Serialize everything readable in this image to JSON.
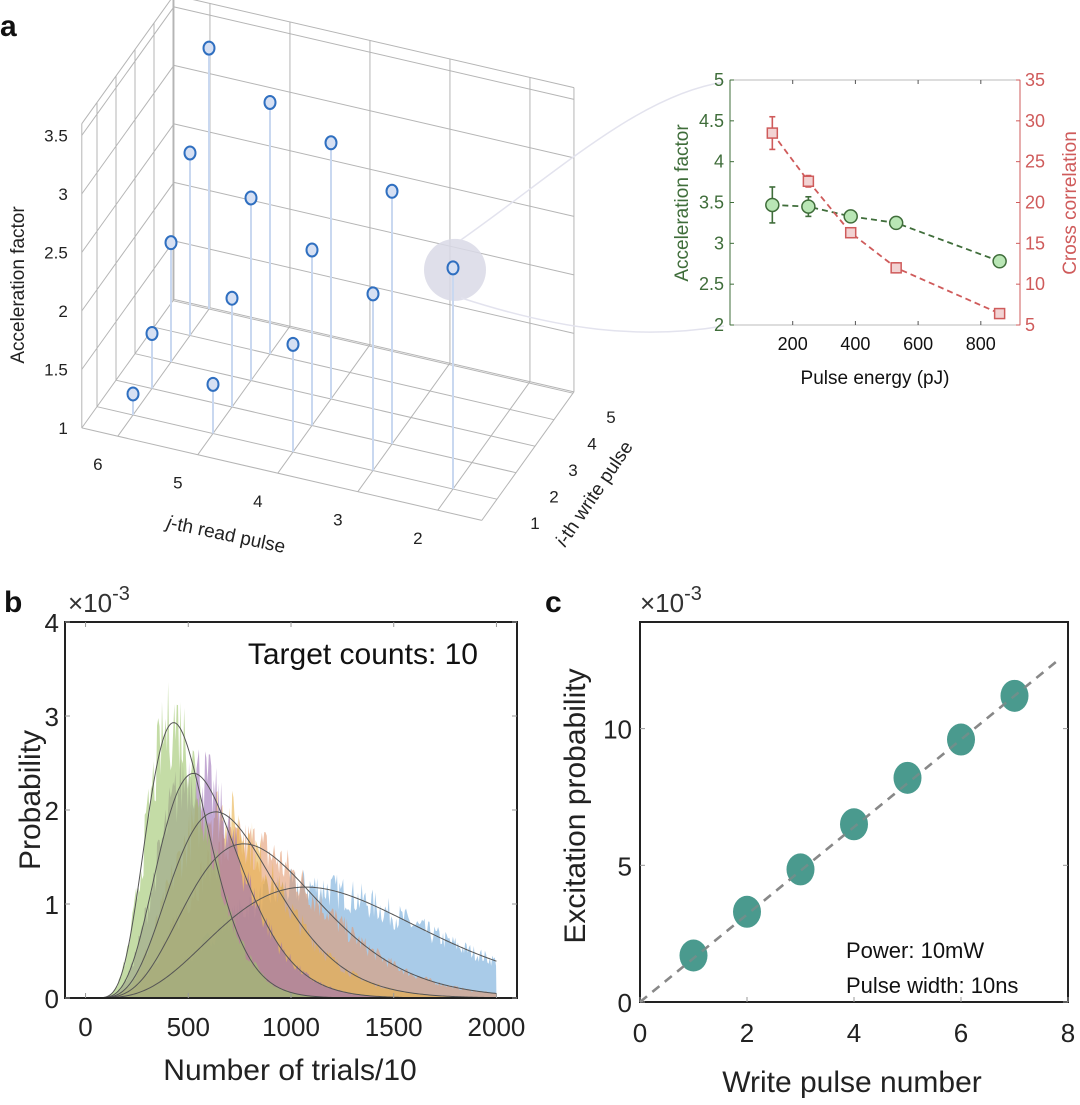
{
  "figure": {
    "panel_labels": {
      "a": "a",
      "b": "b",
      "c": "c"
    },
    "colors": {
      "stem_marker_edge": "#2f6fc0",
      "stem_marker_fill": "#d6e0f3",
      "stem_line": "#c9d8f0",
      "highlight": "#d9d9e6",
      "connector": "#e3e3ee",
      "inset_green": "#3f6d3a",
      "inset_green_fill": "#b9e6b5",
      "inset_red": "#cf5b5b",
      "inset_red_fill": "#f2d3d3",
      "teal": "#4a9a8e",
      "fit_line": "#555555",
      "dash_line": "#888888"
    }
  },
  "chart_data": [
    {
      "id": "a-3d",
      "type": "scatter",
      "subtype": "3d-stem",
      "zlabel": "Acceleration factor",
      "xlabel_italic": "j",
      "xlabel_rest": "-th read pulse",
      "ylabel_italic": "i",
      "ylabel_rest": "-th write pulse",
      "zticks": [
        "1",
        "1.5",
        "2",
        "2.5",
        "3",
        "3.5"
      ],
      "jticks": [
        "6",
        "5",
        "4",
        "3",
        "2"
      ],
      "iticks": [
        "1",
        "2",
        "3",
        "4",
        "5"
      ],
      "zlim": [
        1,
        3.5
      ],
      "highlighted_point": {
        "i": 1,
        "j": 2
      },
      "points": [
        {
          "i": 1,
          "j": 6,
          "z": 1.18
        },
        {
          "i": 1,
          "j": 5,
          "z": 1.42
        },
        {
          "i": 1,
          "j": 4,
          "z": 1.92
        },
        {
          "i": 1,
          "j": 3,
          "z": 2.51
        },
        {
          "i": 1,
          "j": 2,
          "z": 2.89
        },
        {
          "i": 2,
          "j": 6,
          "z": 1.47
        },
        {
          "i": 2,
          "j": 5,
          "z": 1.93
        },
        {
          "i": 2,
          "j": 4,
          "z": 2.5
        },
        {
          "i": 2,
          "j": 3,
          "z": 3.16
        },
        {
          "i": 3,
          "j": 6,
          "z": 2.02
        },
        {
          "i": 3,
          "j": 5,
          "z": 2.56
        },
        {
          "i": 3,
          "j": 4,
          "z": 3.19
        },
        {
          "i": 4,
          "j": 6,
          "z": 2.56
        },
        {
          "i": 4,
          "j": 5,
          "z": 3.15
        },
        {
          "i": 5,
          "j": 6,
          "z": 3.23
        }
      ]
    },
    {
      "id": "a-inset",
      "type": "line",
      "xlabel": "Pulse energy (pJ)",
      "ylabel_left": "Acceleration factor",
      "ylabel_right": "Cross correlation",
      "xlim": [
        0,
        925
      ],
      "xticks": [
        200,
        400,
        600,
        800
      ],
      "ylim_left": [
        2,
        5
      ],
      "yticks_left": [
        "2",
        "2.5",
        "3",
        "3.5",
        "4",
        "4.5",
        "5"
      ],
      "ylim_right": [
        5,
        35
      ],
      "yticks_right": [
        "5",
        "10",
        "15",
        "20",
        "25",
        "30",
        "35"
      ],
      "series": [
        {
          "name": "Acceleration factor",
          "axis": "left",
          "marker": "circle",
          "x": [
            135,
            250,
            385,
            530,
            860
          ],
          "y": [
            3.47,
            3.45,
            3.33,
            3.25,
            2.78
          ],
          "err": [
            0.22,
            0.12,
            0.05,
            0.03,
            0.03
          ]
        },
        {
          "name": "Cross correlation",
          "axis": "right",
          "marker": "square",
          "x": [
            135,
            250,
            385,
            530,
            860
          ],
          "y": [
            28.5,
            22.6,
            16.3,
            12.0,
            6.4
          ],
          "err": [
            2.0,
            0.7,
            0.6,
            0.6,
            0.4
          ]
        }
      ]
    },
    {
      "id": "b",
      "type": "area",
      "subtype": "histogram-with-fits",
      "xlabel": "Number of trials/10",
      "ylabel": "Probability",
      "exponent_label": "×10",
      "exponent": "-3",
      "annotation": "Target counts: 10",
      "xlim": [
        -100,
        2100
      ],
      "xticks": [
        "0",
        "500",
        "1000",
        "1500",
        "2000"
      ],
      "ylim": [
        0,
        4
      ],
      "yticks": [
        "0",
        "1",
        "2",
        "3",
        "4"
      ],
      "series": [
        {
          "name": "series-1",
          "color": "#6fa8d8",
          "peak_x": 1072,
          "peak_y": 1.18
        },
        {
          "name": "series-2",
          "color": "#e39a6f",
          "peak_x": 770,
          "peak_y": 1.64
        },
        {
          "name": "series-3",
          "color": "#e8b14a",
          "peak_x": 634,
          "peak_y": 1.98
        },
        {
          "name": "series-4",
          "color": "#9b6fb5",
          "peak_x": 526,
          "peak_y": 2.39
        },
        {
          "name": "series-5",
          "color": "#9cc46a",
          "peak_x": 429,
          "peak_y": 2.93
        }
      ]
    },
    {
      "id": "c",
      "type": "scatter",
      "xlabel": "Write pulse number",
      "ylabel": "Excitation probability",
      "exponent_label": "×10",
      "exponent": "-3",
      "annotation_lines": [
        "Power: 10mW",
        "Pulse width: 10ns"
      ],
      "xlim": [
        0,
        8
      ],
      "xticks": [
        "0",
        "2",
        "4",
        "6",
        "8"
      ],
      "ylim": [
        0,
        13.9
      ],
      "yticks": [
        "0",
        "5",
        "10"
      ],
      "x": [
        1,
        2,
        3,
        4,
        5,
        6,
        7
      ],
      "y": [
        1.7,
        3.3,
        4.85,
        6.5,
        8.2,
        9.6,
        11.2
      ],
      "fit": {
        "slope": 1.6,
        "intercept": 0,
        "style": "dashed"
      }
    }
  ]
}
